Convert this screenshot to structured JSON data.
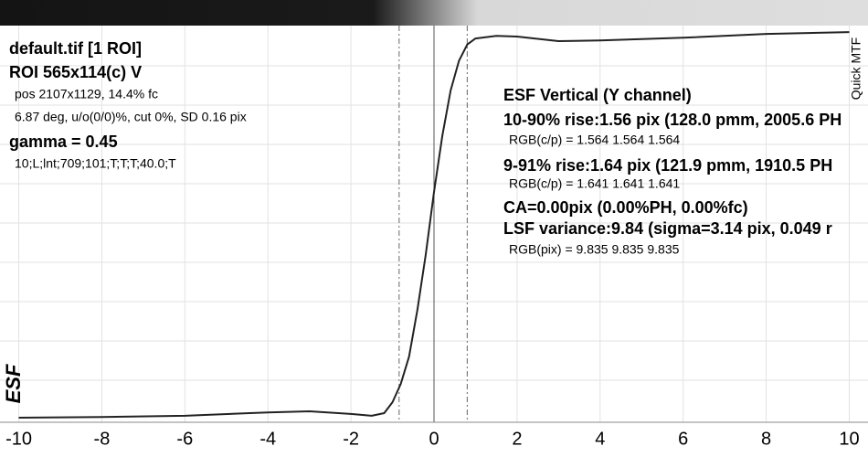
{
  "chart_data": {
    "type": "line",
    "y_label": "ESF",
    "corner_label": "Quick MTF",
    "x": [
      -10,
      -8,
      -6,
      -4,
      -3,
      -2,
      -1.5,
      -1.2,
      -1,
      -0.8,
      -0.6,
      -0.4,
      -0.2,
      0,
      0.2,
      0.4,
      0.6,
      0.8,
      1,
      1.5,
      2,
      3,
      4,
      6,
      8,
      10
    ],
    "values": [
      0,
      0.002,
      0.005,
      0.014,
      0.017,
      0.01,
      0.005,
      0.012,
      0.041,
      0.089,
      0.161,
      0.284,
      0.429,
      0.595,
      0.743,
      0.863,
      0.941,
      0.984,
      1.0,
      1.007,
      1.005,
      0.993,
      0.995,
      1.002,
      1.012,
      1.017
    ],
    "color": "#222222",
    "xlim": [
      -10.1,
      10.1
    ],
    "ylim": [
      -0.012,
      1.034
    ],
    "xticks": [
      -10,
      -8,
      -6,
      -4,
      -2,
      0,
      2,
      4,
      6,
      8,
      10
    ],
    "grid": true,
    "center_line": 0,
    "dashed_lines": [
      -0.84,
      0.8
    ],
    "info_left": [
      "default.tif [1 ROI]",
      "ROI 565x114(c) V",
      "pos 2107x1129, 14.4% fc",
      "6.87 deg, u/o(0/0)%, cut 0%, SD 0.16 pix",
      "gamma = 0.45",
      "10;L;lnt;709;101;T;T;T;40.0;T"
    ],
    "info_right": [
      "ESF Vertical (Y channel)",
      "10-90% rise:1.56 pix (128.0 pmm, 2005.6 PH",
      "RGB(c/p) = 1.564 1.564 1.564",
      "9-91% rise:1.64 pix (121.9 pmm, 1910.5 PH",
      "RGB(c/p) = 1.641 1.641 1.641",
      "CA=0.00pix (0.00%PH, 0.00%fc)",
      "LSF variance:9.84 (sigma=3.14 pix, 0.049 r",
      "RGB(pix) = 9.835 9.835 9.835"
    ]
  }
}
